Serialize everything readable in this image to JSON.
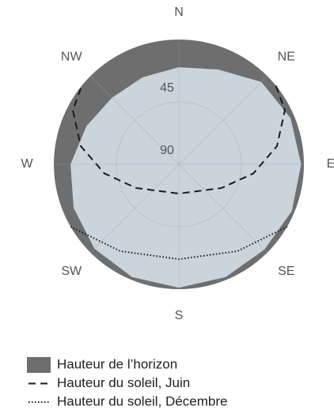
{
  "chart_data": {
    "type": "polar",
    "rlim": [
      0,
      90
    ],
    "rticks": [
      45,
      90
    ],
    "grid": true,
    "sky_color": "#c9d4dd",
    "angular_ticks": [
      {
        "value": 0,
        "label": "N"
      },
      {
        "value": 45,
        "label": "NE"
      },
      {
        "value": 90,
        "label": "E"
      },
      {
        "value": 135,
        "label": "SE"
      },
      {
        "value": 180,
        "label": "S"
      },
      {
        "value": 225,
        "label": "SW"
      },
      {
        "value": 270,
        "label": "W"
      },
      {
        "value": 315,
        "label": "NW"
      }
    ],
    "series": [
      {
        "name": "Hauteur de l’horizon",
        "style": "area",
        "color": "#6e6e6e",
        "azimuth": [
          0,
          22.5,
          45,
          67.5,
          90,
          112.5,
          135,
          157.5,
          180,
          202.5,
          225,
          247.5,
          270,
          292.5,
          315,
          337.5
        ],
        "values": [
          20,
          16,
          6,
          3,
          2,
          2,
          3,
          2,
          1,
          2,
          4,
          8,
          12,
          18,
          22,
          22
        ]
      },
      {
        "name": "Hauteur du soleil, Juin",
        "style": "dashed",
        "color": "#1a1a1a",
        "azimuth": [
          51,
          63,
          79.5,
          97,
          119,
          180,
          241,
          263,
          280.5,
          297,
          309
        ],
        "values": [
          0,
          4.4,
          18.2,
          36,
          54.8,
          68.9,
          54.8,
          36,
          18.2,
          4.4,
          0
        ]
      },
      {
        "name": "Hauteur du soleil, Décembre",
        "style": "dotted",
        "color": "#1a1a1a",
        "azimuth": [
          120,
          146,
          180,
          214,
          240
        ],
        "values": [
          0,
          14.5,
          21.6,
          14.5,
          0
        ]
      }
    ]
  }
}
